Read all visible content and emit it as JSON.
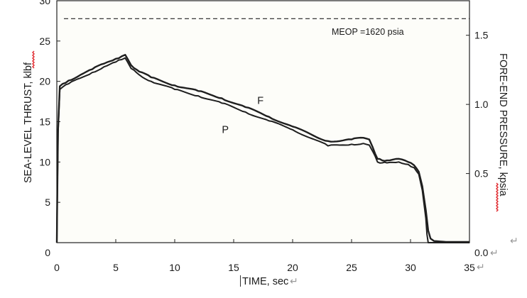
{
  "chart_data": {
    "type": "line",
    "xlabel": "TIME, sec",
    "ylabel_left": "SEA-LEVEL THRUST, klbf",
    "ylabel_right": "FORE-END PRESSURE, kpsia",
    "xlim": [
      0,
      35
    ],
    "ylim_left": [
      0,
      30
    ],
    "ylim_right": [
      0.0,
      1.75
    ],
    "x_ticks": [
      "0",
      "5",
      "10",
      "15",
      "20",
      "25",
      "30",
      "35"
    ],
    "y_left_ticks": [
      "0",
      "5",
      "10",
      "15",
      "20",
      "25",
      "30"
    ],
    "y_right_ticks": [
      "0.0",
      "0.5",
      "1.0",
      "1.5"
    ],
    "grid": false,
    "annotations": [
      {
        "text": "MEOP =1620  psia",
        "y_right": 1.62,
        "style": "dashed"
      }
    ],
    "series": [
      {
        "name": "F",
        "axis": "left",
        "x": [
          0.0,
          0.02,
          0.1,
          0.25,
          0.5,
          1,
          2,
          3,
          4,
          5,
          5.5,
          5.8,
          6.0,
          6.3,
          7,
          8,
          10,
          12,
          14,
          16,
          18,
          20,
          22,
          23,
          24,
          25,
          26,
          26.5,
          26.8,
          27.2,
          27.6,
          28,
          29,
          29.8,
          30.3,
          30.7,
          31.0,
          31.3,
          31.5,
          31.7,
          32,
          33,
          34,
          35
        ],
        "values": [
          0,
          3,
          14,
          19.4,
          19.7,
          20.1,
          20.8,
          21.5,
          22.2,
          22.8,
          23.1,
          23.3,
          22.8,
          22.0,
          21.2,
          20.5,
          19.5,
          18.8,
          17.9,
          16.8,
          15.6,
          14.4,
          13.1,
          12.6,
          12.6,
          12.8,
          13.0,
          12.8,
          11.8,
          10.4,
          10.2,
          10.2,
          10.4,
          10.0,
          9.6,
          8.8,
          7.0,
          4.0,
          1.5,
          0.5,
          0.2,
          0.1,
          0.1,
          0.1
        ]
      },
      {
        "name": "P",
        "axis": "left",
        "x": [
          0.0,
          0.02,
          0.1,
          0.25,
          0.5,
          1,
          2,
          3,
          4,
          5,
          5.5,
          5.8,
          6.0,
          6.3,
          7,
          8,
          10,
          12,
          14,
          16,
          18,
          20,
          22,
          23,
          24,
          25,
          26,
          26.5,
          26.8,
          27.2,
          27.6,
          28,
          29,
          29.8,
          30.3,
          30.7,
          31.0,
          31.3,
          31.4,
          31.5,
          35
        ],
        "values": [
          0,
          3,
          13.5,
          19.0,
          19.3,
          19.7,
          20.4,
          21.1,
          21.8,
          22.4,
          22.7,
          22.9,
          22.4,
          21.6,
          20.8,
          20.0,
          19.0,
          18.2,
          17.3,
          16.2,
          15.1,
          14.0,
          12.7,
          12.0,
          12.1,
          12.2,
          12.3,
          12.1,
          11.3,
          10.0,
          9.9,
          9.9,
          10.0,
          9.7,
          9.3,
          8.5,
          6.5,
          3.0,
          1.0,
          0,
          0
        ]
      }
    ],
    "series_labels": [
      {
        "text": "F",
        "x": 17.0,
        "y": 17.2
      },
      {
        "text": "P",
        "x": 14.0,
        "y": 13.6
      }
    ]
  },
  "marks": {
    "return_glyph": "↵"
  }
}
